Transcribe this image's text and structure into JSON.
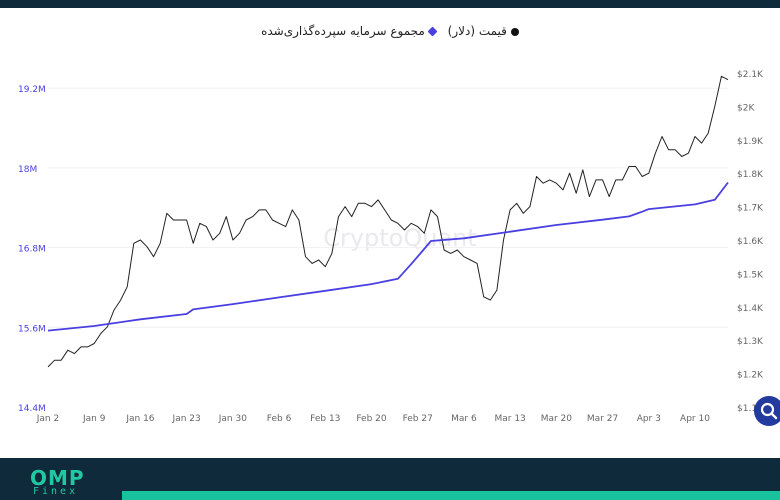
{
  "legend": {
    "price_label": "قیمت (دلار)",
    "deposit_label": "مجموع سرمایه سپرده‌گذاری‌شده"
  },
  "watermark": "CryptoQuant",
  "branding": {
    "logo_main": "OMP",
    "logo_sub": "Finex"
  },
  "colors": {
    "price": "#222222",
    "deposit": "#4a3fe0",
    "axis_text": "#666666",
    "left_axis_text": "#4a3fe0"
  },
  "chart_data": {
    "type": "line",
    "x_ticks": [
      "Jan 2",
      "Jan 9",
      "Jan 16",
      "Jan 23",
      "Jan 30",
      "Feb 6",
      "Feb 13",
      "Feb 20",
      "Feb 27",
      "Mar 6",
      "Mar 13",
      "Mar 20",
      "Mar 27",
      "Apr 3",
      "Apr 10"
    ],
    "x_range": [
      "Jan 2",
      "Apr 15"
    ],
    "left_axis": {
      "ticks": [
        "14.4M",
        "15.6M",
        "16.8M",
        "18M",
        "19.2M"
      ],
      "tick_values": [
        14.4,
        15.6,
        16.8,
        18.0,
        19.2
      ],
      "range": [
        14.4,
        19.7
      ],
      "unit": "M"
    },
    "right_axis": {
      "ticks": [
        "$1.1K",
        "$1.2K",
        "$1.3K",
        "$1.4K",
        "$1.5K",
        "$1.6K",
        "$1.7K",
        "$1.8K",
        "$1.9K",
        "$2K",
        "$2.1K"
      ],
      "tick_values": [
        1.1,
        1.2,
        1.3,
        1.4,
        1.5,
        1.6,
        1.7,
        1.8,
        1.9,
        2.0,
        2.1
      ],
      "range": [
        1.1,
        2.1
      ],
      "unit": "K USD"
    },
    "series": [
      {
        "name": "قیمت (دلار)",
        "axis": "right",
        "points": [
          [
            "Jan 2",
            1.22
          ],
          [
            "Jan 3",
            1.24
          ],
          [
            "Jan 4",
            1.24
          ],
          [
            "Jan 5",
            1.27
          ],
          [
            "Jan 6",
            1.26
          ],
          [
            "Jan 7",
            1.28
          ],
          [
            "Jan 8",
            1.28
          ],
          [
            "Jan 9",
            1.29
          ],
          [
            "Jan 10",
            1.32
          ],
          [
            "Jan 11",
            1.34
          ],
          [
            "Jan 12",
            1.39
          ],
          [
            "Jan 13",
            1.42
          ],
          [
            "Jan 14",
            1.46
          ],
          [
            "Jan 15",
            1.59
          ],
          [
            "Jan 16",
            1.6
          ],
          [
            "Jan 17",
            1.58
          ],
          [
            "Jan 18",
            1.55
          ],
          [
            "Jan 19",
            1.59
          ],
          [
            "Jan 20",
            1.68
          ],
          [
            "Jan 21",
            1.66
          ],
          [
            "Jan 22",
            1.66
          ],
          [
            "Jan 23",
            1.66
          ],
          [
            "Jan 24",
            1.59
          ],
          [
            "Jan 25",
            1.65
          ],
          [
            "Jan 26",
            1.64
          ],
          [
            "Jan 27",
            1.6
          ],
          [
            "Jan 28",
            1.62
          ],
          [
            "Jan 29",
            1.67
          ],
          [
            "Jan 30",
            1.6
          ],
          [
            "Jan 31",
            1.62
          ],
          [
            "Feb 1",
            1.66
          ],
          [
            "Feb 2",
            1.67
          ],
          [
            "Feb 3",
            1.69
          ],
          [
            "Feb 4",
            1.69
          ],
          [
            "Feb 5",
            1.66
          ],
          [
            "Feb 6",
            1.65
          ],
          [
            "Feb 7",
            1.64
          ],
          [
            "Feb 8",
            1.69
          ],
          [
            "Feb 9",
            1.66
          ],
          [
            "Feb 10",
            1.55
          ],
          [
            "Feb 11",
            1.53
          ],
          [
            "Feb 12",
            1.54
          ],
          [
            "Feb 13",
            1.52
          ],
          [
            "Feb 14",
            1.56
          ],
          [
            "Feb 15",
            1.67
          ],
          [
            "Feb 16",
            1.7
          ],
          [
            "Feb 17",
            1.67
          ],
          [
            "Feb 18",
            1.71
          ],
          [
            "Feb 19",
            1.71
          ],
          [
            "Feb 20",
            1.7
          ],
          [
            "Feb 21",
            1.72
          ],
          [
            "Feb 22",
            1.69
          ],
          [
            "Feb 23",
            1.66
          ],
          [
            "Feb 24",
            1.65
          ],
          [
            "Feb 25",
            1.63
          ],
          [
            "Feb 26",
            1.65
          ],
          [
            "Feb 27",
            1.64
          ],
          [
            "Feb 28",
            1.62
          ],
          [
            "Mar 1",
            1.69
          ],
          [
            "Mar 2",
            1.67
          ],
          [
            "Mar 3",
            1.57
          ],
          [
            "Mar 4",
            1.56
          ],
          [
            "Mar 5",
            1.57
          ],
          [
            "Mar 6",
            1.55
          ],
          [
            "Mar 7",
            1.54
          ],
          [
            "Mar 8",
            1.53
          ],
          [
            "Mar 9",
            1.43
          ],
          [
            "Mar 10",
            1.42
          ],
          [
            "Mar 11",
            1.45
          ],
          [
            "Mar 12",
            1.6
          ],
          [
            "Mar 13",
            1.69
          ],
          [
            "Mar 14",
            1.71
          ],
          [
            "Mar 15",
            1.68
          ],
          [
            "Mar 16",
            1.7
          ],
          [
            "Mar 17",
            1.79
          ],
          [
            "Mar 18",
            1.77
          ],
          [
            "Mar 19",
            1.78
          ],
          [
            "Mar 20",
            1.77
          ],
          [
            "Mar 21",
            1.75
          ],
          [
            "Mar 22",
            1.8
          ],
          [
            "Mar 23",
            1.74
          ],
          [
            "Mar 24",
            1.81
          ],
          [
            "Mar 25",
            1.73
          ],
          [
            "Mar 26",
            1.78
          ],
          [
            "Mar 27",
            1.78
          ],
          [
            "Mar 28",
            1.73
          ],
          [
            "Mar 29",
            1.78
          ],
          [
            "Mar 30",
            1.78
          ],
          [
            "Mar 31",
            1.82
          ],
          [
            "Apr 1",
            1.82
          ],
          [
            "Apr 2",
            1.79
          ],
          [
            "Apr 3",
            1.8
          ],
          [
            "Apr 4",
            1.86
          ],
          [
            "Apr 5",
            1.91
          ],
          [
            "Apr 6",
            1.87
          ],
          [
            "Apr 7",
            1.87
          ],
          [
            "Apr 8",
            1.85
          ],
          [
            "Apr 9",
            1.86
          ],
          [
            "Apr 10",
            1.91
          ],
          [
            "Apr 11",
            1.89
          ],
          [
            "Apr 12",
            1.92
          ],
          [
            "Apr 13",
            2.0
          ],
          [
            "Apr 14",
            2.09
          ],
          [
            "Apr 15",
            2.08
          ]
        ]
      },
      {
        "name": "مجموع سرمایه سپرده‌گذاری‌شده",
        "axis": "left",
        "points": [
          [
            "Jan 2",
            15.55
          ],
          [
            "Jan 9",
            15.62
          ],
          [
            "Jan 16",
            15.72
          ],
          [
            "Jan 23",
            15.8
          ],
          [
            "Jan 24",
            15.87
          ],
          [
            "Jan 30",
            15.95
          ],
          [
            "Feb 6",
            16.05
          ],
          [
            "Feb 13",
            16.15
          ],
          [
            "Feb 20",
            16.25
          ],
          [
            "Feb 24",
            16.33
          ],
          [
            "Feb 26",
            16.55
          ],
          [
            "Feb 28",
            16.78
          ],
          [
            "Mar 1",
            16.9
          ],
          [
            "Mar 6",
            16.94
          ],
          [
            "Mar 13",
            17.04
          ],
          [
            "Mar 20",
            17.14
          ],
          [
            "Mar 27",
            17.22
          ],
          [
            "Mar 31",
            17.27
          ],
          [
            "Apr 2",
            17.34
          ],
          [
            "Apr 3",
            17.38
          ],
          [
            "Apr 10",
            17.45
          ],
          [
            "Apr 13",
            17.52
          ],
          [
            "Apr 15",
            17.78
          ]
        ]
      }
    ]
  }
}
